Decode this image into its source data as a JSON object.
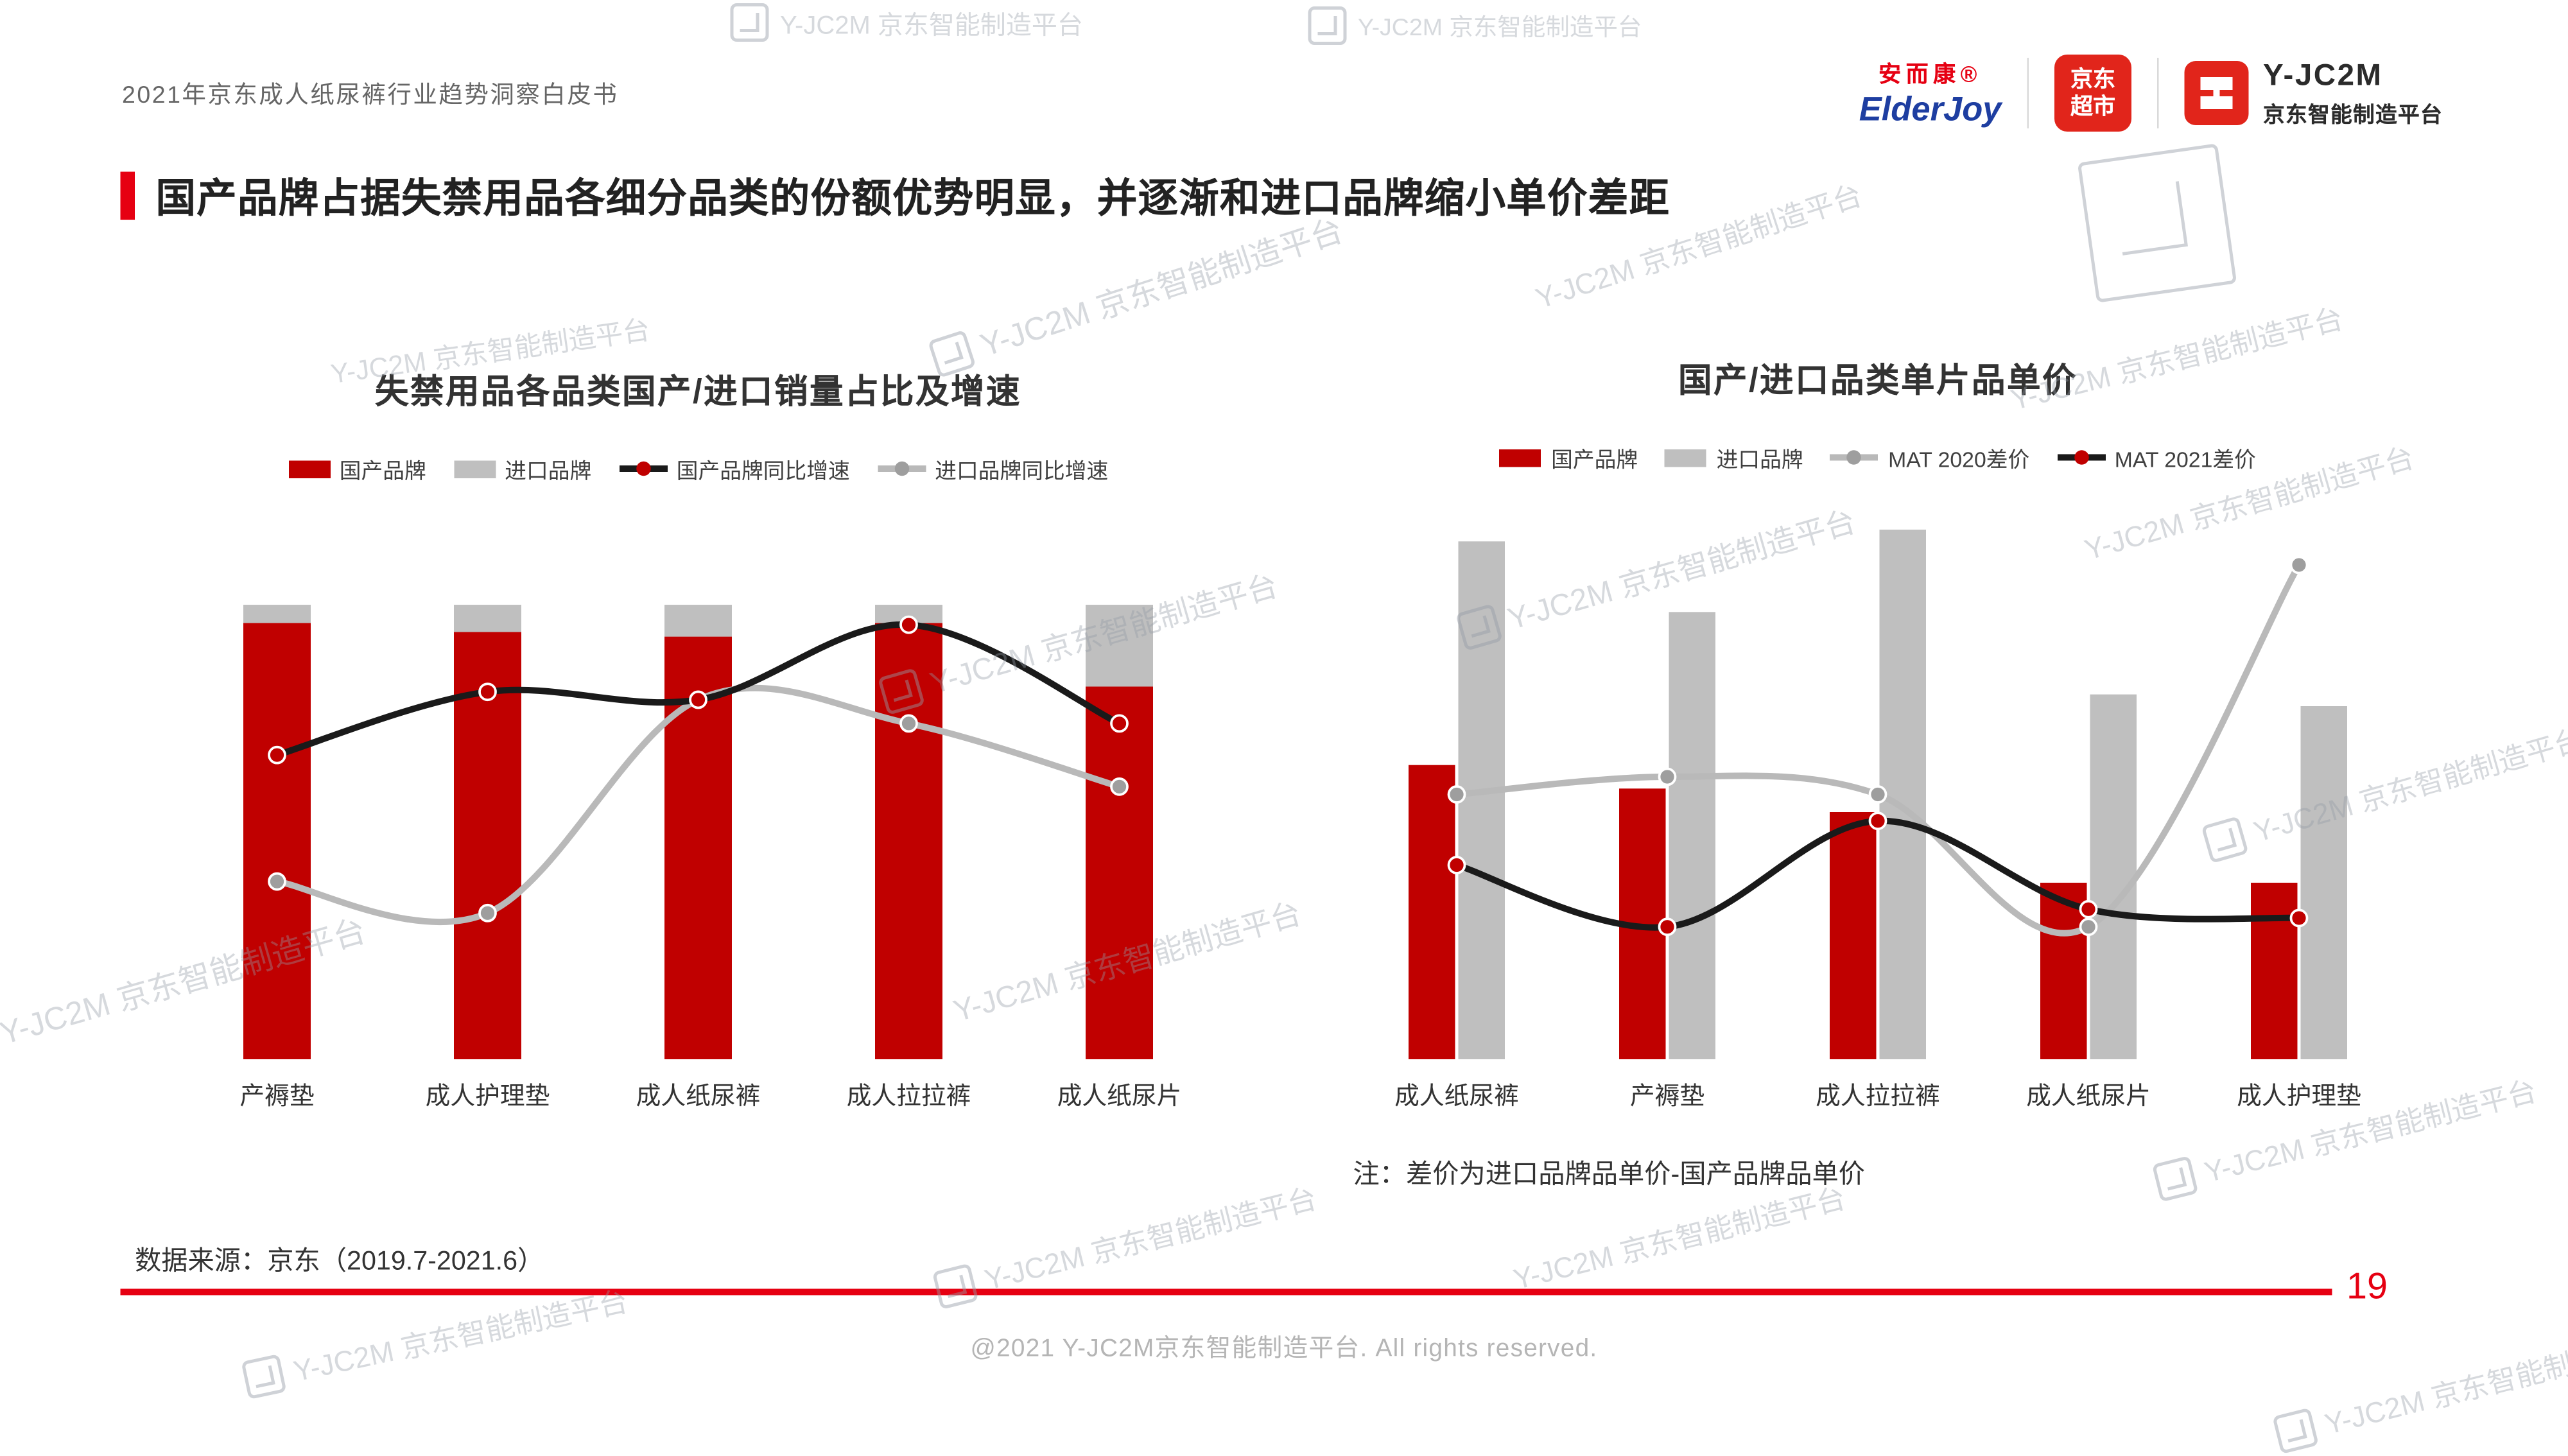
{
  "page": {
    "header_left": "2021年京东成人纸尿裤行业趋势洞察白皮书",
    "title": "国产品牌占据失禁用品各细分品类的份额优势明显，并逐渐和进口品牌缩小单价差距",
    "source": "数据来源：京东（2019.7-2021.6）",
    "page_number": "19",
    "footer": "@2021 Y-JC2M京东智能制造平台. All rights reserved."
  },
  "logos": {
    "elderjoy_cn": "安而康®",
    "elderjoy_en": "ElderJoy",
    "jd_market_line1": "京东",
    "jd_market_line2": "超市",
    "yjc2m_name": "Y-JC2M",
    "yjc2m_sub": "京东智能制造平台"
  },
  "watermark": {
    "text": "Y-JC2M 京东智能制造平台"
  },
  "colors": {
    "accent_red": "#e60012",
    "bar_red": "#c00000",
    "bar_gray": "#bfbfbf",
    "line_black": "#1a1a1a",
    "line_gray": "#b9b9b9"
  },
  "chart_data": [
    {
      "type": "bar",
      "subtype": "stacked-bar-with-lines",
      "title": "失禁用品各品类国产/进口销量占比及增速",
      "categories": [
        "产褥垫",
        "成人护理垫",
        "成人纸尿裤",
        "成人拉拉裤",
        "成人纸尿片"
      ],
      "bar_stacked": true,
      "bar_axis_max": 113,
      "bar_unit": "%",
      "bar_series": [
        {
          "name": "国产品牌",
          "color": "#c00000",
          "values": [
            96,
            94,
            93,
            96,
            82
          ]
        },
        {
          "name": "进口品牌",
          "color": "#bfbfbf",
          "values": [
            4,
            6,
            7,
            4,
            18
          ]
        }
      ],
      "line_axis_range": [
        -30,
        100
      ],
      "line_unit": "%",
      "line_series": [
        {
          "name": "进口品牌同比增速",
          "color": "#b9b9b9",
          "marker_color": "#9e9e9e",
          "values": [
            15,
            7,
            61,
            55,
            39
          ]
        },
        {
          "name": "国产品牌同比增速",
          "color": "#1a1a1a",
          "marker_color": "#c00000",
          "values": [
            47,
            63,
            61,
            80,
            55
          ]
        }
      ],
      "legend": [
        {
          "label": "国产品牌",
          "type": "bar",
          "color": "#c00000"
        },
        {
          "label": "进口品牌",
          "type": "bar",
          "color": "#bfbfbf"
        },
        {
          "label": "国产品牌同比增速",
          "type": "line",
          "color": "#1a1a1a",
          "marker": "#c00000"
        },
        {
          "label": "进口品牌同比增速",
          "type": "line",
          "color": "#b9b9b9",
          "marker": "#9e9e9e"
        }
      ],
      "grid": false,
      "axes_hidden": true
    },
    {
      "type": "bar",
      "subtype": "grouped-bar-with-lines",
      "title": "国产/进口品类单片品单价",
      "categories": [
        "成人纸尿裤",
        "产褥垫",
        "成人拉拉裤",
        "成人纸尿片",
        "成人护理垫"
      ],
      "bar_stacked": false,
      "bar_axis_max": 4.5,
      "bar_unit": "元/片",
      "bar_series": [
        {
          "name": "国产品牌",
          "color": "#c00000",
          "values": [
            2.5,
            2.3,
            2.1,
            1.5,
            1.5
          ]
        },
        {
          "name": "进口品牌",
          "color": "#bfbfbf",
          "values": [
            4.4,
            3.8,
            4.5,
            3.1,
            3.0
          ]
        }
      ],
      "line_axis_range": [
        0,
        6
      ],
      "line_unit": "元/片",
      "line_series": [
        {
          "name": "MAT 2020差价",
          "color": "#b9b9b9",
          "marker_color": "#9e9e9e",
          "values": [
            3.0,
            3.2,
            3.0,
            1.5,
            5.6
          ]
        },
        {
          "name": "MAT 2021差价",
          "color": "#1a1a1a",
          "marker_color": "#c00000",
          "values": [
            2.2,
            1.5,
            2.7,
            1.7,
            1.6
          ]
        }
      ],
      "legend": [
        {
          "label": "国产品牌",
          "type": "bar",
          "color": "#c00000"
        },
        {
          "label": "进口品牌",
          "type": "bar",
          "color": "#bfbfbf"
        },
        {
          "label": "MAT 2020差价",
          "type": "line",
          "color": "#b9b9b9",
          "marker": "#9e9e9e"
        },
        {
          "label": "MAT 2021差价",
          "type": "line",
          "color": "#1a1a1a",
          "marker": "#c00000"
        }
      ],
      "note": "注：差价为进口品牌品单价-国产品牌品单价",
      "grid": false,
      "axes_hidden": true
    }
  ]
}
